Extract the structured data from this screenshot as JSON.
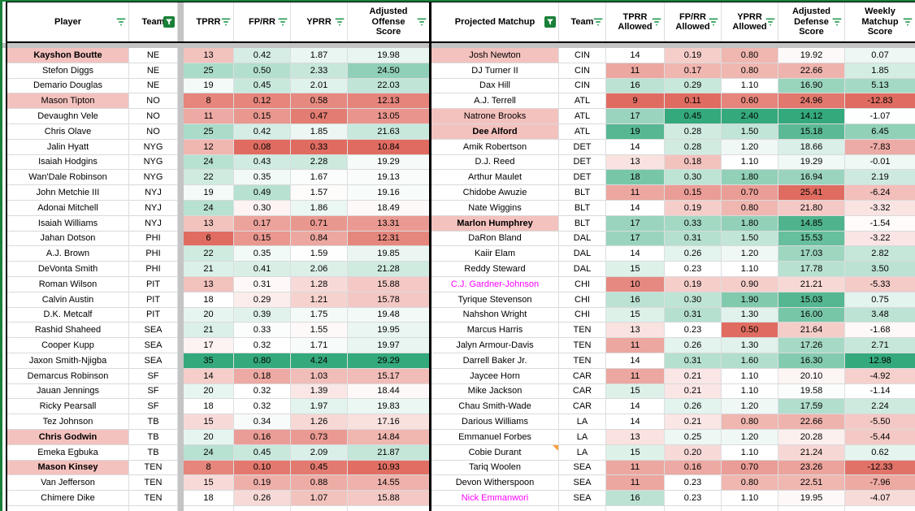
{
  "palette": {
    "accent_green": "#188038",
    "filter_green": "#2f9e57",
    "grid_gray": "#dcdee0",
    "divider_gray": "#c4c4c4",
    "highlight_pink": "#f4c2be",
    "magenta_name": "#ff00ff",
    "note_orange": "#f9a13c",
    "scale_red": "#e06c61",
    "scale_white": "#ffffff",
    "scale_green": "#34a97c"
  },
  "color_scales": {
    "tprr": {
      "min": 6,
      "mid": 18,
      "max": 35
    },
    "fprr": {
      "min": 0.08,
      "mid": 0.32,
      "max": 0.8
    },
    "yprr": {
      "min": 0.33,
      "mid": 1.6,
      "max": 4.24
    },
    "aos": {
      "min": 10.84,
      "mid": 18.8,
      "max": 29.29
    },
    "tprr_a": {
      "min": 9,
      "mid": 14,
      "max": 20
    },
    "fprr_a": {
      "min": 0.11,
      "mid": 0.23,
      "max": 0.45
    },
    "yprr_a": {
      "min": 0.5,
      "mid": 1.1,
      "max": 2.4
    },
    "ads": {
      "min": 14.12,
      "mid": 19.7,
      "max": 25.41,
      "invert": true
    },
    "wms": {
      "min": -12.83,
      "mid": -1.2,
      "max": 12.98
    }
  },
  "left_table": {
    "columns": [
      {
        "key": "player",
        "label": "Player",
        "filter": "lines"
      },
      {
        "key": "team",
        "label": "Team",
        "filter": "active"
      },
      {
        "divider": true
      },
      {
        "key": "tprr",
        "label": "TPRR",
        "filter": "lines",
        "vi": 0,
        "scale": "tprr"
      },
      {
        "key": "fprr",
        "label": "FP/RR",
        "filter": "lines",
        "vi": 1,
        "scale": "fprr"
      },
      {
        "key": "yprr",
        "label": "YPRR",
        "filter": "lines",
        "vi": 2,
        "scale": "yprr"
      },
      {
        "key": "adjusted-offense-score",
        "label": "Adjusted\nOffense\nScore",
        "filter": "lines",
        "vi": 3,
        "scale": "aos"
      }
    ],
    "rows": [
      {
        "player": "Kayshon Boutte",
        "team": "NE",
        "values": [
          "13",
          "0.42",
          "1.87",
          "19.98"
        ],
        "bold": true,
        "highlight": true
      },
      {
        "player": "Stefon Diggs",
        "team": "NE",
        "values": [
          "25",
          "0.50",
          "2.33",
          "24.50"
        ]
      },
      {
        "player": "Demario Douglas",
        "team": "NE",
        "values": [
          "19",
          "0.45",
          "2.01",
          "22.03"
        ]
      },
      {
        "player": "Mason Tipton",
        "team": "NO",
        "values": [
          "8",
          "0.12",
          "0.58",
          "12.13"
        ],
        "highlight": true
      },
      {
        "player": "Devaughn Vele",
        "team": "NO",
        "values": [
          "11",
          "0.15",
          "0.47",
          "13.05"
        ]
      },
      {
        "player": "Chris Olave",
        "team": "NO",
        "values": [
          "25",
          "0.42",
          "1.85",
          "21.63"
        ]
      },
      {
        "player": "Jalin Hyatt",
        "team": "NYG",
        "values": [
          "12",
          "0.08",
          "0.33",
          "10.84"
        ]
      },
      {
        "player": "Isaiah Hodgins",
        "team": "NYG",
        "values": [
          "24",
          "0.43",
          "2.28",
          "19.29"
        ]
      },
      {
        "player": "Wan'Dale Robinson",
        "team": "NYG",
        "values": [
          "22",
          "0.35",
          "1.67",
          "19.13"
        ]
      },
      {
        "player": "John Metchie III",
        "team": "NYJ",
        "values": [
          "19",
          "0.49",
          "1.57",
          "19.16"
        ]
      },
      {
        "player": "Adonai Mitchell",
        "team": "NYJ",
        "values": [
          "24",
          "0.30",
          "1.86",
          "18.49"
        ]
      },
      {
        "player": "Isaiah Williams",
        "team": "NYJ",
        "values": [
          "13",
          "0.17",
          "0.71",
          "13.31"
        ]
      },
      {
        "player": "Jahan Dotson",
        "team": "PHI",
        "values": [
          "6",
          "0.15",
          "0.84",
          "12.31"
        ]
      },
      {
        "player": "A.J. Brown",
        "team": "PHI",
        "values": [
          "22",
          "0.35",
          "1.59",
          "19.85"
        ]
      },
      {
        "player": "DeVonta Smith",
        "team": "PHI",
        "values": [
          "21",
          "0.41",
          "2.06",
          "21.28"
        ]
      },
      {
        "player": "Roman Wilson",
        "team": "PIT",
        "values": [
          "13",
          "0.31",
          "1.28",
          "15.88"
        ]
      },
      {
        "player": "Calvin Austin",
        "team": "PIT",
        "values": [
          "18",
          "0.29",
          "1.21",
          "15.78"
        ]
      },
      {
        "player": "D.K. Metcalf",
        "team": "PIT",
        "values": [
          "20",
          "0.39",
          "1.75",
          "19.48"
        ]
      },
      {
        "player": "Rashid Shaheed",
        "team": "SEA",
        "values": [
          "21",
          "0.33",
          "1.55",
          "19.95"
        ]
      },
      {
        "player": "Cooper Kupp",
        "team": "SEA",
        "values": [
          "17",
          "0.32",
          "1.71",
          "19.97"
        ]
      },
      {
        "player": "Jaxon Smith-Njigba",
        "team": "SEA",
        "values": [
          "35",
          "0.80",
          "4.24",
          "29.29"
        ]
      },
      {
        "player": "Demarcus Robinson",
        "team": "SF",
        "values": [
          "14",
          "0.18",
          "1.03",
          "15.17"
        ]
      },
      {
        "player": "Jauan Jennings",
        "team": "SF",
        "values": [
          "20",
          "0.32",
          "1.39",
          "18.44"
        ]
      },
      {
        "player": "Ricky Pearsall",
        "team": "SF",
        "values": [
          "18",
          "0.32",
          "1.97",
          "19.83"
        ]
      },
      {
        "player": "Tez Johnson",
        "team": "TB",
        "values": [
          "15",
          "0.34",
          "1.26",
          "17.16"
        ]
      },
      {
        "player": "Chris Godwin",
        "team": "TB",
        "values": [
          "20",
          "0.16",
          "0.73",
          "14.84"
        ],
        "bold": true,
        "highlight": true
      },
      {
        "player": "Emeka Egbuka",
        "team": "TB",
        "values": [
          "24",
          "0.45",
          "2.09",
          "21.87"
        ]
      },
      {
        "player": "Mason Kinsey",
        "team": "TEN",
        "values": [
          "8",
          "0.10",
          "0.45",
          "10.93"
        ],
        "bold": true,
        "highlight": true
      },
      {
        "player": "Van Jefferson",
        "team": "TEN",
        "values": [
          "15",
          "0.19",
          "0.88",
          "14.55"
        ]
      },
      {
        "player": "Chimere Dike",
        "team": "TEN",
        "values": [
          "18",
          "0.26",
          "1.07",
          "15.88"
        ]
      }
    ]
  },
  "right_table": {
    "columns": [
      {
        "key": "projected-matchup",
        "label": "Projected Matchup",
        "filter": "active"
      },
      {
        "key": "team",
        "label": "Team",
        "filter": "lines"
      },
      {
        "key": "tprr-allowed",
        "label": "TPRR\nAllowed",
        "filter": "lines",
        "vi": 0,
        "scale": "tprr_a"
      },
      {
        "key": "fprr-allowed",
        "label": "FP/RR\nAllowed",
        "filter": "lines",
        "vi": 1,
        "scale": "fprr_a"
      },
      {
        "key": "yprr-allowed",
        "label": "YPRR\nAllowed",
        "filter": "lines",
        "vi": 2,
        "scale": "yprr_a"
      },
      {
        "key": "adjusted-defense-score",
        "label": "Adjusted\nDefense\nScore",
        "filter": "lines",
        "vi": 3,
        "scale": "ads"
      },
      {
        "key": "weekly-matchup-score",
        "label": "Weekly\nMatchup\nScore",
        "filter": "lines",
        "vi": 4,
        "scale": "wms"
      }
    ],
    "rows": [
      {
        "player": "Josh Newton",
        "team": "CIN",
        "values": [
          "14",
          "0.19",
          "0.80",
          "19.92",
          "0.07"
        ],
        "highlight": true
      },
      {
        "player": "DJ Turner II",
        "team": "CIN",
        "values": [
          "11",
          "0.17",
          "0.80",
          "22.66",
          "1.85"
        ]
      },
      {
        "player": "Dax Hill",
        "team": "CIN",
        "values": [
          "16",
          "0.29",
          "1.10",
          "16.90",
          "5.13"
        ]
      },
      {
        "player": "A.J. Terrell",
        "team": "ATL",
        "values": [
          "9",
          "0.11",
          "0.60",
          "24.96",
          "-12.83"
        ]
      },
      {
        "player": "Natrone Brooks",
        "team": "ATL",
        "values": [
          "17",
          "0.45",
          "2.40",
          "14.12",
          "-1.07"
        ],
        "highlight": true
      },
      {
        "player": "Dee Alford",
        "team": "ATL",
        "values": [
          "19",
          "0.28",
          "1.50",
          "15.18",
          "6.45"
        ],
        "bold": true,
        "highlight": true
      },
      {
        "player": "Amik Robertson",
        "team": "DET",
        "values": [
          "14",
          "0.28",
          "1.20",
          "18.66",
          "-7.83"
        ]
      },
      {
        "player": "D.J. Reed",
        "team": "DET",
        "values": [
          "13",
          "0.18",
          "1.10",
          "19.29",
          "-0.01"
        ]
      },
      {
        "player": "Arthur Maulet",
        "team": "DET",
        "values": [
          "18",
          "0.30",
          "1.80",
          "16.94",
          "2.19"
        ]
      },
      {
        "player": "Chidobe Awuzie",
        "team": "BLT",
        "values": [
          "11",
          "0.15",
          "0.70",
          "25.41",
          "-6.24"
        ]
      },
      {
        "player": "Nate Wiggins",
        "team": "BLT",
        "values": [
          "14",
          "0.19",
          "0.80",
          "21.80",
          "-3.32"
        ]
      },
      {
        "player": "Marlon Humphrey",
        "team": "BLT",
        "values": [
          "17",
          "0.33",
          "1.80",
          "14.85",
          "-1.54"
        ],
        "bold": true,
        "highlight": true
      },
      {
        "player": "DaRon Bland",
        "team": "DAL",
        "values": [
          "17",
          "0.31",
          "1.50",
          "15.53",
          "-3.22"
        ]
      },
      {
        "player": "Kaiir Elam",
        "team": "DAL",
        "values": [
          "14",
          "0.26",
          "1.20",
          "17.03",
          "2.82"
        ]
      },
      {
        "player": "Reddy Steward",
        "team": "DAL",
        "values": [
          "15",
          "0.23",
          "1.10",
          "17.78",
          "3.50"
        ]
      },
      {
        "player": "C.J. Gardner-Johnson",
        "team": "CHI",
        "values": [
          "10",
          "0.19",
          "0.90",
          "21.21",
          "-5.33"
        ],
        "magenta": true
      },
      {
        "player": "Tyrique Stevenson",
        "team": "CHI",
        "values": [
          "16",
          "0.30",
          "1.90",
          "15.03",
          "0.75"
        ]
      },
      {
        "player": "Nahshon Wright",
        "team": "CHI",
        "values": [
          "15",
          "0.31",
          "1.30",
          "16.00",
          "3.48"
        ]
      },
      {
        "player": "Marcus Harris",
        "team": "TEN",
        "values": [
          "13",
          "0.23",
          "0.50",
          "21.64",
          "-1.68"
        ]
      },
      {
        "player": "Jalyn Armour-Davis",
        "team": "TEN",
        "values": [
          "11",
          "0.26",
          "1.30",
          "17.26",
          "2.71"
        ]
      },
      {
        "player": "Darrell Baker Jr.",
        "team": "TEN",
        "values": [
          "14",
          "0.31",
          "1.60",
          "16.30",
          "12.98"
        ]
      },
      {
        "player": "Jaycee Horn",
        "team": "CAR",
        "values": [
          "11",
          "0.21",
          "1.10",
          "20.10",
          "-4.92"
        ]
      },
      {
        "player": "Mike Jackson",
        "team": "CAR",
        "values": [
          "15",
          "0.21",
          "1.10",
          "19.58",
          "-1.14"
        ]
      },
      {
        "player": "Chau Smith-Wade",
        "team": "CAR",
        "values": [
          "14",
          "0.26",
          "1.20",
          "17.59",
          "2.24"
        ]
      },
      {
        "player": "Darious Williams",
        "team": "LA",
        "values": [
          "14",
          "0.21",
          "0.80",
          "22.66",
          "-5.50"
        ]
      },
      {
        "player": "Emmanuel Forbes",
        "team": "LA",
        "values": [
          "13",
          "0.25",
          "1.20",
          "20.28",
          "-5.44"
        ]
      },
      {
        "player": "Cobie Durant",
        "team": "LA",
        "values": [
          "15",
          "0.20",
          "1.10",
          "21.24",
          "0.62"
        ],
        "note": true
      },
      {
        "player": "Tariq Woolen",
        "team": "SEA",
        "values": [
          "11",
          "0.16",
          "0.70",
          "23.26",
          "-12.33"
        ]
      },
      {
        "player": "Devon Witherspoon",
        "team": "SEA",
        "values": [
          "11",
          "0.23",
          "0.80",
          "22.51",
          "-7.96"
        ]
      },
      {
        "player": "Nick Emmanwori",
        "team": "SEA",
        "values": [
          "16",
          "0.23",
          "1.10",
          "19.95",
          "-4.07"
        ],
        "magenta": true
      }
    ]
  }
}
